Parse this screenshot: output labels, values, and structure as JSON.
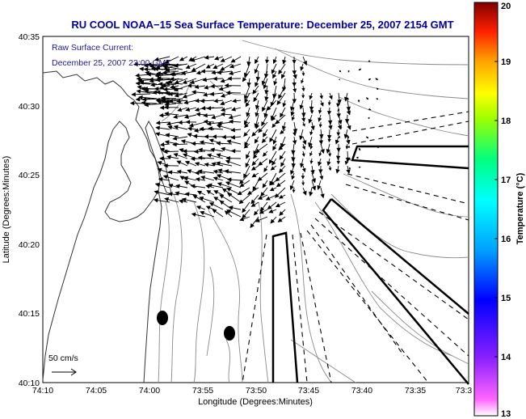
{
  "title": "RU COOL  NOAA−15  Sea Surface Temperature:  December 25, 2007 2154 GMT",
  "inset": {
    "line1": "Raw Surface Current:",
    "line2": "December 25, 2007 23:00 GMT"
  },
  "scale_label": "50 cm/s",
  "axes": {
    "xlabel": "Longitude (Degrees:Minutes)",
    "ylabel": "Latitude (Degrees:Minutes)",
    "x_ticks": [
      "74:10",
      "74:05",
      "74:00",
      "73:55",
      "73:50",
      "73:45",
      "73:40",
      "73:35",
      "73:3"
    ],
    "y_ticks": [
      "40:35",
      "40:30",
      "40:25",
      "40:20",
      "40:15",
      "40:10"
    ]
  },
  "colorbar": {
    "label": "Temperature (°C)",
    "ticks": [
      "20",
      "19",
      "18",
      "17",
      "16",
      "15",
      "14",
      "13"
    ],
    "range": [
      13,
      20
    ],
    "colors": [
      "#ff00ff",
      "#1010ff",
      "#00ffff",
      "#00ff60",
      "#ffff00",
      "#ff8000",
      "#ff0000",
      "#800000"
    ]
  },
  "colors": {
    "title": "#0000a0",
    "vectors": "#000000",
    "bathymetry": "#8a8a8a"
  }
}
